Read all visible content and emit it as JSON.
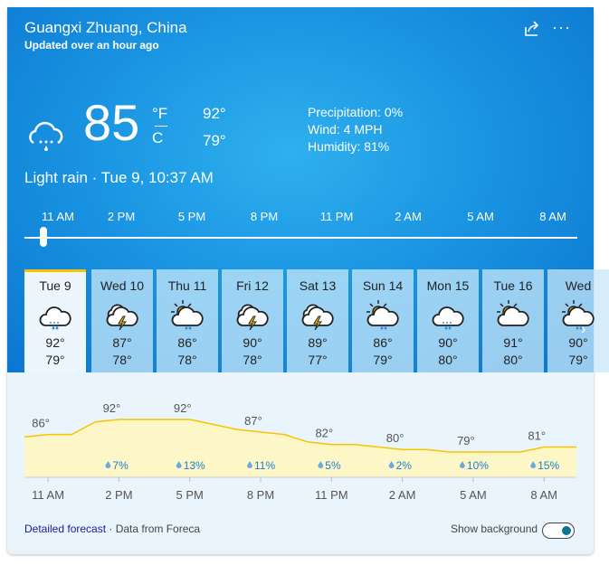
{
  "location": "Guangxi Zhuang, China",
  "updated": "Updated over an hour ago",
  "current": {
    "temp": "85",
    "unit_f": "°F",
    "unit_c": "C",
    "high": "92°",
    "low": "79°",
    "icon": "light-rain-icon",
    "precipitation": "Precipitation: 0%",
    "wind": "Wind: 4 MPH",
    "humidity": "Humidity: 81%",
    "condition": "Light rain · Tue 9, 10:37 AM"
  },
  "slider_hours": [
    "11 AM",
    "2 PM",
    "5 PM",
    "8 PM",
    "11 PM",
    "2 AM",
    "5 AM",
    "8 AM"
  ],
  "slider_position": 0.03,
  "days": [
    {
      "name": "Tue 9",
      "icon": "light-rain",
      "high": "92°",
      "low": "79°",
      "selected": true
    },
    {
      "name": "Wed 10",
      "icon": "thunderstorm",
      "high": "87°",
      "low": "78°"
    },
    {
      "name": "Thu 11",
      "icon": "partly-sunny-rain",
      "high": "86°",
      "low": "78°"
    },
    {
      "name": "Fri 12",
      "icon": "thunderstorm",
      "high": "90°",
      "low": "78°"
    },
    {
      "name": "Sat 13",
      "icon": "thunderstorm",
      "high": "89°",
      "low": "77°"
    },
    {
      "name": "Sun 14",
      "icon": "partly-sunny-rain",
      "high": "86°",
      "low": "79°"
    },
    {
      "name": "Mon 15",
      "icon": "light-rain",
      "high": "90°",
      "low": "80°"
    },
    {
      "name": "Tue 16",
      "icon": "partly-cloudy",
      "high": "91°",
      "low": "80°"
    },
    {
      "name": "Wed",
      "icon": "partly-sunny-rain",
      "high": "90°",
      "low": "79°"
    }
  ],
  "chart_data": {
    "type": "area",
    "x_ticks": [
      "11 AM",
      "2 PM",
      "5 PM",
      "8 PM",
      "11 PM",
      "2 AM",
      "5 AM",
      "8 AM"
    ],
    "hourly_temps": [
      85,
      86,
      86,
      91,
      92,
      92,
      92,
      92,
      90,
      88,
      87,
      86,
      83,
      82,
      82,
      81,
      80,
      80,
      79,
      79,
      79,
      79,
      81,
      81
    ],
    "labels": [
      "86°",
      "92°",
      "92°",
      "87°",
      "82°",
      "80°",
      "79°",
      "81°"
    ],
    "precip": [
      "",
      "7%",
      "13%",
      "11%",
      "5%",
      "2%",
      "10%",
      "15%"
    ],
    "line_color": "#f8c400",
    "fill_color": "#fdf7c8",
    "precip_color": "#1a7fd0"
  },
  "footer": {
    "link": "Detailed forecast",
    "source": " · Data from Foreca",
    "toggle_label": "Show background",
    "toggle_on": true
  }
}
